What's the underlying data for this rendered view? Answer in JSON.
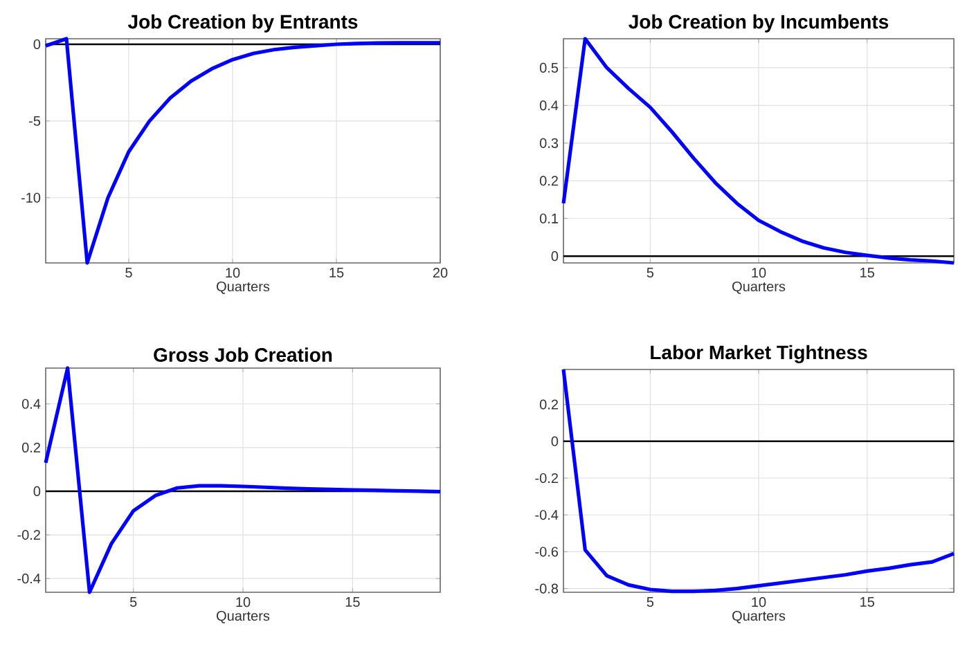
{
  "chart_data": [
    {
      "type": "line",
      "title": "Job Creation by Entrants",
      "xlabel": "Quarters",
      "x": [
        1,
        2,
        3,
        4,
        5,
        6,
        7,
        8,
        9,
        10,
        11,
        12,
        13,
        14,
        15,
        16,
        17,
        18,
        19,
        20
      ],
      "series": [
        {
          "color": "#0000ff",
          "values": [
            -0.1,
            0.36,
            -14.25,
            -10,
            -7,
            -5,
            -3.5,
            -2.4,
            -1.6,
            -1.0,
            -0.6,
            -0.35,
            -0.2,
            -0.1,
            0.0,
            0.05,
            0.08,
            0.1,
            0.1,
            0.1
          ]
        }
      ],
      "xlim": [
        1,
        20
      ],
      "ylim": [
        -14.25,
        0.36
      ],
      "xticks": [
        5,
        10,
        15,
        20
      ],
      "yticks": [
        -10,
        -5,
        0
      ],
      "grid": true,
      "ref_lines": [
        {
          "axis": "y",
          "value": 0,
          "color": "#000000"
        }
      ]
    },
    {
      "type": "line",
      "title": "Job Creation by Incumbents",
      "xlabel": "Quarters",
      "x": [
        1,
        2,
        3,
        4,
        5,
        6,
        7,
        8,
        9,
        10,
        11,
        12,
        13,
        14,
        15,
        16,
        17,
        18,
        19
      ],
      "series": [
        {
          "color": "#0000ff",
          "values": [
            0.14,
            0.577,
            0.5,
            0.445,
            0.395,
            0.33,
            0.26,
            0.195,
            0.14,
            0.095,
            0.065,
            0.04,
            0.022,
            0.01,
            0.002,
            -0.005,
            -0.01,
            -0.013,
            -0.018
          ]
        }
      ],
      "xlim": [
        1,
        19
      ],
      "ylim": [
        -0.018,
        0.577
      ],
      "xticks": [
        5,
        10,
        15
      ],
      "yticks": [
        0,
        0.1,
        0.2,
        0.3,
        0.4,
        0.5
      ],
      "grid": true,
      "ref_lines": [
        {
          "axis": "y",
          "value": 0,
          "color": "#000000"
        }
      ]
    },
    {
      "type": "line",
      "title": "Gross Job Creation",
      "xlabel": "Quarters",
      "x": [
        1,
        2,
        3,
        4,
        5,
        6,
        7,
        8,
        9,
        10,
        11,
        12,
        13,
        14,
        15,
        16,
        17,
        18,
        19
      ],
      "series": [
        {
          "color": "#0000ff",
          "values": [
            0.13,
            0.564,
            -0.463,
            -0.24,
            -0.09,
            -0.02,
            0.015,
            0.025,
            0.025,
            0.022,
            0.018,
            0.014,
            0.011,
            0.008,
            0.006,
            0.004,
            0.002,
            0.0,
            -0.002
          ]
        }
      ],
      "xlim": [
        1,
        19
      ],
      "ylim": [
        -0.463,
        0.564
      ],
      "xticks": [
        5,
        10,
        15
      ],
      "yticks": [
        -0.4,
        -0.2,
        0,
        0.2,
        0.4
      ],
      "grid": true,
      "ref_lines": [
        {
          "axis": "y",
          "value": 0,
          "color": "#000000"
        }
      ]
    },
    {
      "type": "line",
      "title": "Labor Market Tightness",
      "xlabel": "Quarters",
      "x": [
        1,
        2,
        3,
        4,
        5,
        6,
        7,
        8,
        9,
        10,
        11,
        12,
        13,
        14,
        15,
        16,
        17,
        18,
        19
      ],
      "series": [
        {
          "color": "#0000ff",
          "values": [
            0.39,
            -0.59,
            -0.73,
            -0.78,
            -0.805,
            -0.815,
            -0.815,
            -0.81,
            -0.8,
            -0.785,
            -0.77,
            -0.755,
            -0.74,
            -0.725,
            -0.705,
            -0.69,
            -0.67,
            -0.655,
            -0.61
          ]
        }
      ],
      "xlim": [
        1,
        19
      ],
      "ylim": [
        -0.82,
        0.39
      ],
      "xticks": [
        5,
        10,
        15
      ],
      "yticks": [
        -0.8,
        -0.6,
        -0.4,
        -0.2,
        0,
        0.2
      ],
      "grid": true,
      "ref_lines": [
        {
          "axis": "y",
          "value": 0,
          "color": "#000000"
        }
      ]
    }
  ]
}
